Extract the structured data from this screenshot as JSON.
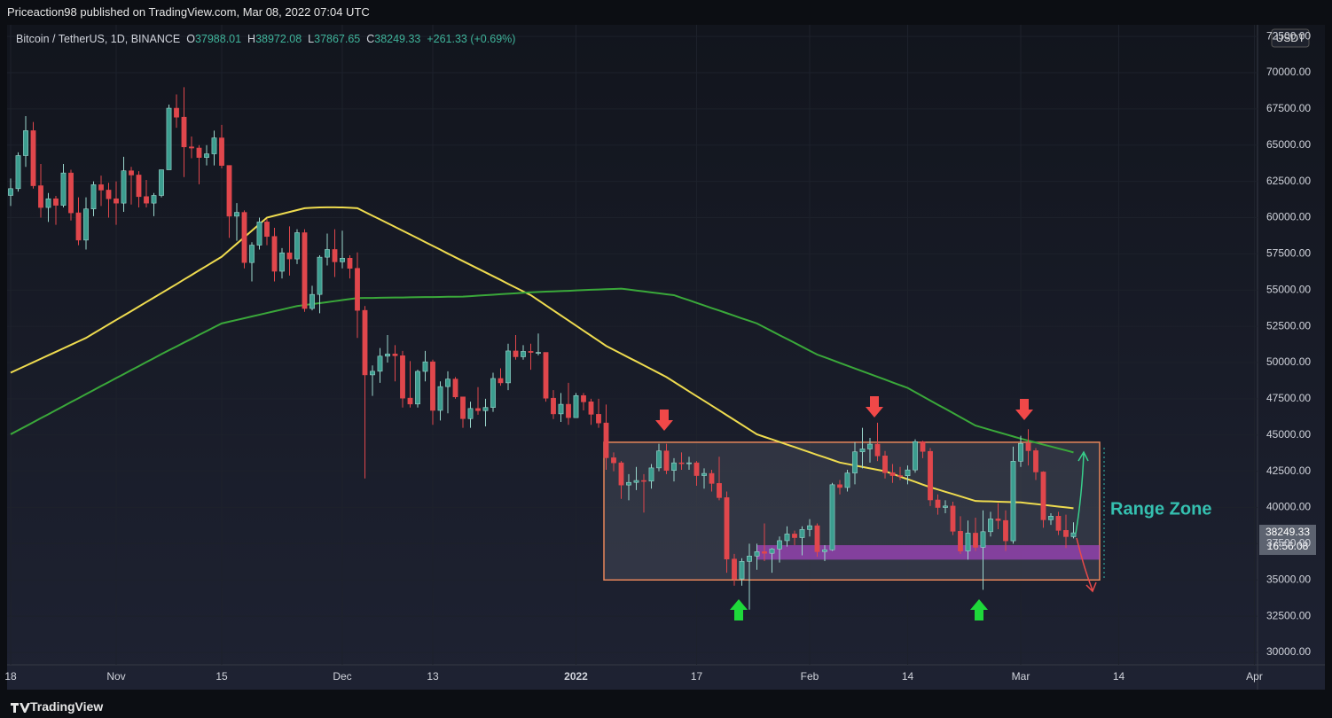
{
  "header": {
    "published": "Priceaction98 published on TradingView.com, Mar 08, 2022 07:04 UTC"
  },
  "footer": {
    "brand": "TradingView"
  },
  "chart_data": {
    "type": "candlestick",
    "title": "Bitcoin / TetherUS, 1D, BINANCE",
    "ohlc_letters": [
      "O",
      "H",
      "L",
      "C"
    ],
    "change": "+261.33 (+0.69%)",
    "currency": "USDT",
    "countdown": "16:56:08",
    "up_color": "#3c9d8f",
    "down_color": "#e0474c",
    "ylim": [
      29144,
      73303
    ],
    "yticks": [
      {
        "value": 30000,
        "label": "30000.00"
      },
      {
        "value": 32500,
        "label": "32500.00"
      },
      {
        "value": 35000,
        "label": "35000.00"
      },
      {
        "value": 37500,
        "label": "37500.00"
      },
      {
        "value": 40000,
        "label": "40000.00"
      },
      {
        "value": 42500,
        "label": "42500.00"
      },
      {
        "value": 45000,
        "label": "45000.00"
      },
      {
        "value": 47500,
        "label": "47500.00"
      },
      {
        "value": 50000,
        "label": "50000.00"
      },
      {
        "value": 52500,
        "label": "52500.00"
      },
      {
        "value": 55000,
        "label": "55000.00"
      },
      {
        "value": 57500,
        "label": "57500.00"
      },
      {
        "value": 60000,
        "label": "60000.00"
      },
      {
        "value": 62500,
        "label": "62500.00"
      },
      {
        "value": 65000,
        "label": "65000.00"
      },
      {
        "value": 67500,
        "label": "67500.00"
      },
      {
        "value": 70000,
        "label": "70000.00"
      },
      {
        "value": 72500,
        "label": "72500.00"
      }
    ],
    "categories": [
      "18",
      null,
      null,
      null,
      null,
      null,
      null,
      null,
      null,
      null,
      null,
      null,
      null,
      null,
      "Nov",
      null,
      null,
      null,
      null,
      null,
      null,
      null,
      null,
      null,
      null,
      null,
      null,
      null,
      "15",
      null,
      null,
      null,
      null,
      null,
      null,
      null,
      null,
      null,
      null,
      null,
      null,
      null,
      null,
      null,
      "Dec",
      null,
      null,
      null,
      null,
      null,
      null,
      null,
      null,
      null,
      null,
      null,
      "13",
      null,
      null,
      null,
      null,
      null,
      null,
      null,
      null,
      null,
      null,
      null,
      null,
      null,
      null,
      null,
      null,
      null,
      null,
      "2022",
      null,
      null,
      null,
      null,
      null,
      null,
      null,
      null,
      null,
      null,
      null,
      null,
      null,
      null,
      null,
      "17",
      null,
      null,
      null,
      null,
      null,
      null,
      null,
      null,
      null,
      null,
      null,
      null,
      null,
      null,
      "Feb",
      null,
      null,
      null,
      null,
      null,
      null,
      null,
      null,
      null,
      null,
      null,
      null,
      "14",
      null,
      null,
      null,
      null,
      null,
      null,
      null,
      null,
      null,
      null,
      null,
      null,
      null,
      null,
      "Mar",
      null,
      null,
      null,
      null,
      null,
      null,
      null,
      null,
      null,
      null,
      null,
      null,
      "14",
      null,
      null,
      null,
      null,
      null,
      null,
      null,
      null,
      null,
      null,
      null,
      null,
      null,
      null,
      null,
      null,
      null,
      "Apr"
    ],
    "open": [
      61530,
      62000,
      64280,
      66000,
      62200,
      60700,
      61300,
      60850,
      63080,
      60330,
      58450,
      60600,
      62270,
      61900,
      61300,
      61000,
      63230,
      62940,
      61450,
      61000,
      61530,
      63300,
      67550,
      66930,
      64880,
      64800,
      64150,
      64400,
      65500,
      63600,
      60100,
      60360,
      56900,
      58100,
      59700,
      58700,
      56300,
      57570,
      57150,
      58960,
      53730,
      54700,
      57270,
      57800,
      56950,
      57200,
      56500,
      53600,
      49150,
      49400,
      50440,
      50590,
      50470,
      47545,
      47140,
      49390,
      50050,
      46700,
      48340,
      48860,
      47630,
      46130,
      46830,
      46680,
      46900,
      48900,
      48600,
      50800,
      50400,
      50770,
      50700,
      50700,
      47540,
      46460,
      47120,
      46200,
      47720,
      47290,
      46430,
      45830,
      43430,
      43080,
      41550,
      41730,
      41860,
      41820,
      42730,
      43900,
      42560,
      43080,
      43070,
      43080,
      42200,
      42350,
      41660,
      40680,
      36440,
      35070,
      36280,
      36650,
      36950,
      36840,
      37140,
      37710,
      38170,
      37920,
      38480,
      38740,
      36950,
      37080,
      41570,
      41380,
      42380,
      43840,
      44040,
      44370,
      43560,
      42400,
      42200,
      42190,
      42590,
      44540,
      43870,
      40520,
      40000,
      40100,
      38360,
      37000,
      38230,
      37250,
      38330,
      39210,
      39100,
      37700,
      43190,
      44420,
      43920,
      42450,
      39150,
      39400,
      38420,
      37988.01,
      null,
      null,
      null,
      null,
      null,
      null,
      null,
      null,
      null,
      null,
      null,
      null,
      null,
      null,
      null,
      null,
      null,
      null,
      null,
      null,
      null,
      null,
      null,
      null
    ],
    "high": [
      62700,
      64500,
      67000,
      66600,
      63700,
      61700,
      61500,
      63700,
      63300,
      61400,
      61400,
      62500,
      62900,
      62400,
      62500,
      64200,
      63500,
      63200,
      62600,
      61700,
      63300,
      67800,
      68500,
      69000,
      65600,
      65000,
      65000,
      66000,
      66400,
      63600,
      61000,
      60500,
      58300,
      60000,
      59900,
      59300,
      57900,
      59400,
      59200,
      59200,
      55300,
      57400,
      58900,
      59200,
      59100,
      57400,
      57600,
      53900,
      49800,
      51000,
      51900,
      51200,
      50800,
      50100,
      49500,
      50800,
      50200,
      48700,
      49400,
      49000,
      47600,
      47300,
      48300,
      47500,
      49300,
      49600,
      51300,
      51900,
      51200,
      51300,
      52000,
      50700,
      48100,
      47900,
      48600,
      47900,
      47900,
      47500,
      47500,
      47100,
      43800,
      43200,
      42300,
      42800,
      42300,
      43000,
      44400,
      44400,
      43400,
      43800,
      43500,
      43200,
      42700,
      42600,
      43500,
      41100,
      36800,
      36500,
      37500,
      37500,
      38900,
      37200,
      38000,
      38700,
      38400,
      38700,
      39200,
      38900,
      37400,
      41700,
      41900,
      42600,
      44500,
      45500,
      44800,
      45850,
      43900,
      43000,
      42800,
      42900,
      44700,
      44600,
      44100,
      40900,
      40500,
      40400,
      39400,
      39100,
      39300,
      39800,
      39700,
      40300,
      39800,
      44200,
      44950,
      45400,
      44100,
      42500,
      39600,
      39700,
      39500,
      38972.08,
      null,
      null,
      null,
      null,
      null,
      null,
      null,
      null,
      null,
      null,
      null,
      null,
      null,
      null,
      null,
      null,
      null,
      null,
      null,
      null,
      null,
      null,
      null,
      null
    ],
    "low": [
      60800,
      61800,
      63500,
      62000,
      60000,
      59700,
      59500,
      60700,
      59800,
      58100,
      57800,
      60100,
      60800,
      60000,
      59500,
      60400,
      60900,
      60700,
      60700,
      60100,
      61400,
      63300,
      66200,
      62800,
      64100,
      62300,
      63600,
      63600,
      63400,
      58600,
      58400,
      56500,
      55600,
      57800,
      58100,
      55600,
      55800,
      56000,
      56800,
      53500,
      53600,
      53400,
      56700,
      55900,
      56500,
      55800,
      51700,
      42000,
      47700,
      48600,
      50000,
      48700,
      46900,
      46900,
      46900,
      48700,
      45700,
      46000,
      46500,
      47500,
      45500,
      45500,
      46400,
      45600,
      46600,
      48400,
      48100,
      50200,
      50200,
      49500,
      50500,
      47300,
      46100,
      45900,
      45700,
      46200,
      46700,
      45700,
      45500,
      42600,
      42500,
      40600,
      40500,
      41200,
      39650,
      41300,
      42500,
      42300,
      41800,
      42600,
      42600,
      41500,
      41300,
      41100,
      40500,
      35500,
      34600,
      34600,
      32950,
      35700,
      36300,
      35500,
      36200,
      37300,
      37400,
      36700,
      38000,
      36600,
      36300,
      37000,
      40900,
      41100,
      41600,
      42700,
      43100,
      43200,
      42000,
      41700,
      41900,
      41600,
      42400,
      43400,
      40100,
      39500,
      39600,
      38100,
      36800,
      36400,
      37000,
      34320,
      38000,
      38500,
      37000,
      37500,
      42800,
      42900,
      41900,
      38600,
      38800,
      38100,
      37200,
      37867.65,
      null,
      null,
      null,
      null,
      null,
      null,
      null,
      null,
      null,
      null,
      null,
      null,
      null,
      null,
      null,
      null,
      null,
      null,
      null,
      null,
      null,
      null,
      null,
      null
    ],
    "close": [
      62000,
      64280,
      66000,
      62200,
      60700,
      61300,
      60850,
      63080,
      60330,
      58450,
      60600,
      62270,
      61900,
      61300,
      61000,
      63230,
      62940,
      61450,
      61000,
      61530,
      63300,
      67550,
      66930,
      64880,
      64800,
      64150,
      64400,
      65500,
      63600,
      60100,
      60360,
      56900,
      58100,
      59700,
      58700,
      56300,
      57570,
      57150,
      58960,
      53730,
      54700,
      57270,
      57800,
      56950,
      57200,
      56500,
      53600,
      49150,
      49400,
      50440,
      50590,
      50470,
      47545,
      47140,
      49390,
      50050,
      46700,
      48340,
      48860,
      47630,
      46130,
      46830,
      46680,
      46900,
      48900,
      48600,
      50800,
      50400,
      50770,
      50700,
      50700,
      47540,
      46460,
      47120,
      46200,
      47720,
      47290,
      46430,
      45830,
      43430,
      43080,
      41550,
      41730,
      41860,
      41820,
      42730,
      43900,
      42560,
      43080,
      43070,
      43080,
      42200,
      42350,
      41660,
      40680,
      36440,
      35070,
      36280,
      36650,
      36950,
      36840,
      37140,
      37710,
      38170,
      37920,
      38480,
      38740,
      36950,
      37080,
      41570,
      41380,
      42380,
      43840,
      44040,
      44370,
      43560,
      42400,
      42200,
      42190,
      42590,
      44540,
      43870,
      40520,
      40000,
      40100,
      38360,
      37000,
      38230,
      37250,
      38330,
      39210,
      39100,
      37700,
      43190,
      44420,
      43920,
      42450,
      39150,
      39400,
      38420,
      37988.01,
      38249.33,
      null,
      null,
      null,
      null,
      null,
      null,
      null,
      null,
      null,
      null,
      null,
      null,
      null,
      null,
      null,
      null,
      null,
      null,
      null,
      null,
      null,
      null,
      null,
      null
    ],
    "series": [
      {
        "color": "#eedb4f",
        "values": [
          49300,
          49540,
          49780,
          50020,
          50260,
          50500,
          50740,
          50980,
          51220,
          51460,
          51700,
          52010,
          52320,
          52630,
          52940,
          53240,
          53550,
          53860,
          54170,
          54480,
          54790,
          55100,
          55410,
          55730,
          56040,
          56360,
          56670,
          56990,
          57300,
          57750,
          58200,
          58650,
          59100,
          59550,
          60000,
          60130,
          60260,
          60390,
          60520,
          60650,
          60680,
          60700,
          60710,
          60710,
          60700,
          60680,
          60650,
          60390,
          60130,
          59880,
          59620,
          59360,
          59100,
          58840,
          58580,
          58310,
          58050,
          57790,
          57520,
          57260,
          57000,
          56740,
          56480,
          56220,
          55960,
          55700,
          55430,
          55170,
          54910,
          54650,
          54300,
          53950,
          53600,
          53250,
          52900,
          52550,
          52200,
          51850,
          51500,
          51150,
          50880,
          50610,
          50340,
          50080,
          49810,
          49540,
          49270,
          49000,
          48670,
          48340,
          48010,
          47680,
          47360,
          47030,
          46700,
          46370,
          46040,
          45710,
          45380,
          45050,
          44870,
          44700,
          44520,
          44340,
          44170,
          43990,
          43810,
          43630,
          43460,
          43280,
          43100,
          43000,
          42900,
          42800,
          42700,
          42600,
          42500,
          42320,
          42130,
          41950,
          41770,
          41580,
          41400,
          41240,
          41080,
          40930,
          40770,
          40610,
          40450,
          40430,
          40420,
          40400,
          40380,
          40370,
          40350,
          40290,
          40240,
          40180,
          40120,
          40060,
          40010,
          39950,
          null,
          null,
          null,
          null,
          null,
          null,
          null,
          null,
          null,
          null,
          null,
          null,
          null,
          null,
          null,
          null,
          null,
          null,
          null,
          null,
          null,
          null,
          null,
          null
        ]
      },
      {
        "color": "#3aa83a",
        "values": [
          45050,
          45330,
          45600,
          45880,
          46160,
          46430,
          46710,
          46990,
          47270,
          47540,
          47820,
          48100,
          48380,
          48650,
          48930,
          49200,
          49480,
          49750,
          50030,
          50300,
          50580,
          50850,
          51110,
          51380,
          51640,
          51910,
          52170,
          52440,
          52700,
          52820,
          52940,
          53060,
          53180,
          53300,
          53420,
          53540,
          53660,
          53780,
          53900,
          53970,
          54040,
          54100,
          54170,
          54240,
          54310,
          54380,
          54450,
          54460,
          54460,
          54470,
          54480,
          54490,
          54490,
          54500,
          54510,
          54520,
          54520,
          54530,
          54540,
          54540,
          54550,
          54580,
          54620,
          54650,
          54680,
          54720,
          54750,
          54780,
          54820,
          54850,
          54870,
          54890,
          54910,
          54930,
          54950,
          54980,
          55000,
          55020,
          55040,
          55060,
          55080,
          55100,
          55040,
          54970,
          54910,
          54840,
          54780,
          54710,
          54650,
          54470,
          54300,
          54120,
          53940,
          53760,
          53590,
          53410,
          53230,
          53050,
          52880,
          52700,
          52430,
          52160,
          51890,
          51630,
          51360,
          51090,
          50820,
          50550,
          50360,
          50170,
          49970,
          49780,
          49590,
          49400,
          49210,
          49020,
          48830,
          48630,
          48440,
          48250,
          47960,
          47670,
          47380,
          47090,
          46810,
          46520,
          46230,
          45940,
          45650,
          45500,
          45350,
          45200,
          45050,
          44900,
          44750,
          44610,
          44480,
          44340,
          44210,
          44070,
          43940,
          43800,
          null,
          null,
          null,
          null,
          null,
          null,
          null,
          null,
          null,
          null,
          null,
          null,
          null,
          null,
          null,
          null,
          null,
          null,
          null,
          null,
          null,
          null,
          null,
          null
        ]
      }
    ],
    "annotations": {
      "range_box": [
        44500,
        35000
      ],
      "support_zone": [
        37400,
        36400
      ],
      "label": "Range Zone"
    }
  }
}
